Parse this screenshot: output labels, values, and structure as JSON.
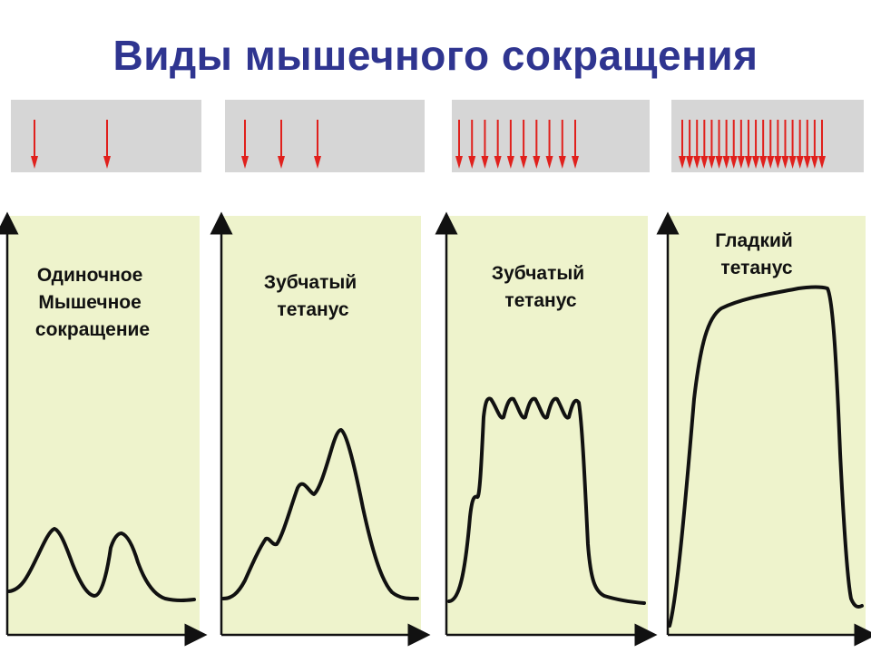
{
  "title": "Виды мышечного сокращения",
  "colors": {
    "title": "#2f3590",
    "stimulus_bar": "#d6d6d6",
    "stimulus_arrow": "#e0201c",
    "plot_bg": "#eef3cc",
    "curve": "#111111"
  },
  "panels": [
    {
      "id": "single",
      "label_lines": [
        "Одиночное",
        "Мышечное",
        "сокращение"
      ],
      "stimulus_count": 2
    },
    {
      "id": "serrated-1",
      "label_lines": [
        "Зубчатый",
        "тетанус"
      ],
      "stimulus_count": 3
    },
    {
      "id": "serrated-2",
      "label_lines": [
        "Зубчатый",
        "тетанус"
      ],
      "stimulus_count": 10
    },
    {
      "id": "smooth",
      "label_lines": [
        "Гладкий",
        "тетанус"
      ],
      "stimulus_count": 20
    }
  ]
}
